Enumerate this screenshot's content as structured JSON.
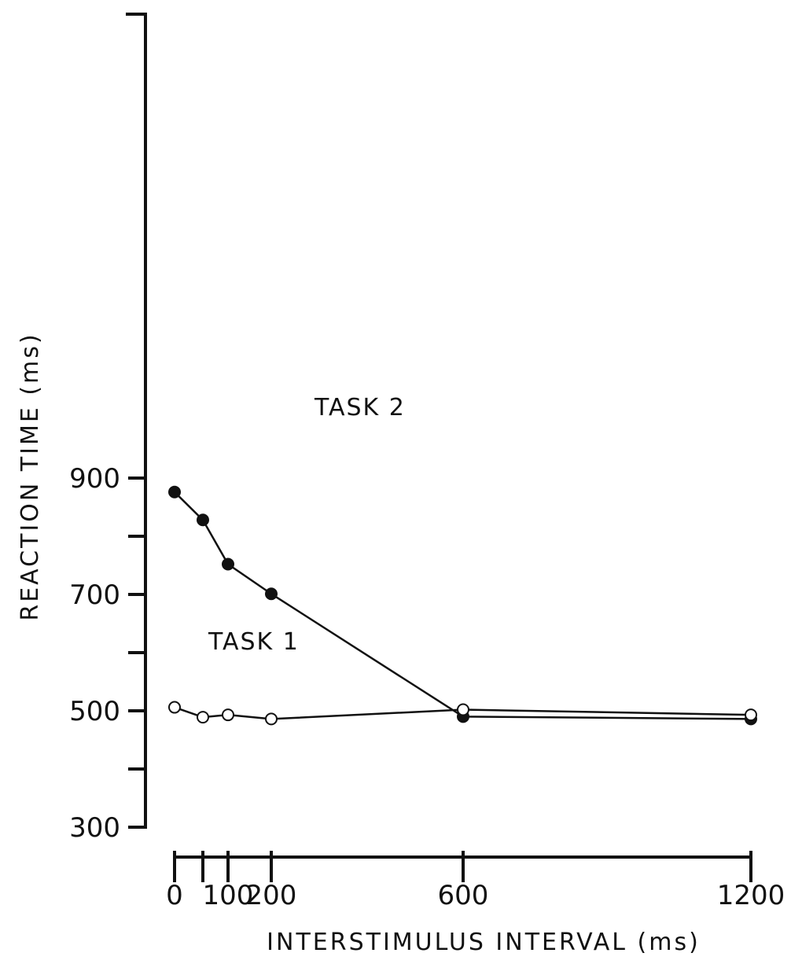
{
  "chart_data": {
    "type": "line",
    "xlabel": "INTERSTIMULUS INTERVAL (ms)",
    "ylabel": "REACTION TIME (ms)",
    "ylim": [
      300,
      1000
    ],
    "y_ticks": [
      300,
      400,
      500,
      600,
      700,
      800,
      900
    ],
    "y_tick_labels": [
      "300",
      "",
      "500",
      "",
      "700",
      "",
      "900"
    ],
    "x_ticks": [
      0,
      50,
      100,
      200,
      600,
      1200
    ],
    "x_tick_labels": [
      "0",
      "",
      "100",
      "200",
      "600",
      "1200"
    ],
    "grid": false,
    "series": [
      {
        "name": "TASK 2",
        "marker": "filled-circle",
        "color": "#111111",
        "x": [
          0,
          50,
          100,
          200,
          600,
          1200
        ],
        "y": [
          876,
          828,
          752,
          701,
          490,
          486
        ]
      },
      {
        "name": "TASK 1",
        "marker": "open-circle",
        "color": "#111111",
        "x": [
          0,
          50,
          100,
          200,
          600,
          1200
        ],
        "y": [
          506,
          489,
          493,
          486,
          502,
          493
        ]
      }
    ]
  }
}
